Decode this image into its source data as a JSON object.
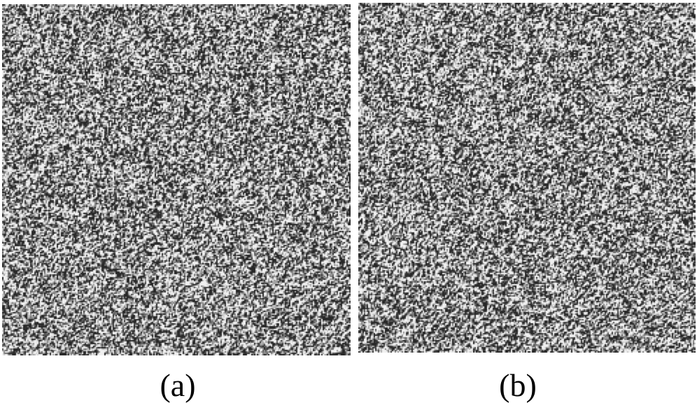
{
  "panels": [
    {
      "id": "a",
      "caption": "(a)"
    },
    {
      "id": "b",
      "caption": "(b)"
    }
  ],
  "colors": {
    "background": "#ffffff",
    "noise_mid": "#888888"
  }
}
